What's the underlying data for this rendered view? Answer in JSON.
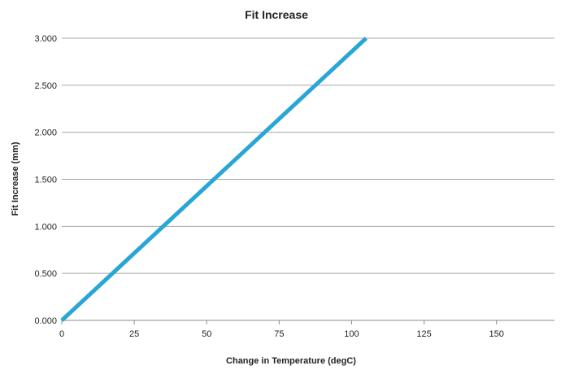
{
  "chart_data": {
    "type": "line",
    "title": "Fit Increase",
    "xlabel": "Change in Temperature (degC)",
    "ylabel": "Fit Increase (mm)",
    "xlim": [
      0,
      170
    ],
    "ylim": [
      0,
      3.0
    ],
    "x_ticks": [
      "0",
      "25",
      "50",
      "75",
      "100",
      "125",
      "150"
    ],
    "y_ticks": [
      "0.000",
      "0.500",
      "1.000",
      "1.500",
      "2.000",
      "2.500",
      "3.000"
    ],
    "grid": "horizontal",
    "legend": "none",
    "series": [
      {
        "color": "#2aa6d6",
        "x": [
          0,
          105
        ],
        "y": [
          0.0,
          3.0
        ]
      }
    ]
  }
}
